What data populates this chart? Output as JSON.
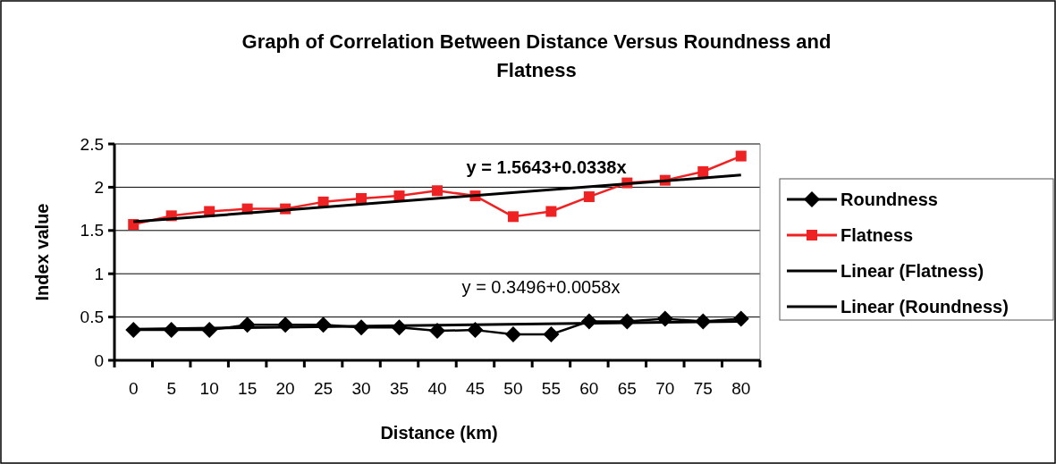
{
  "chart_data": {
    "type": "line",
    "title": "Graph of Correlation Between Distance Versus Roundness and Flatness",
    "xlabel": "Distance (km)",
    "ylabel": "Index value",
    "categories": [
      "0",
      "5",
      "10",
      "15",
      "20",
      "25",
      "30",
      "35",
      "40",
      "45",
      "50",
      "55",
      "60",
      "65",
      "70",
      "75",
      "80"
    ],
    "ylim": [
      0,
      2.5
    ],
    "yticks": [
      0,
      0.5,
      1,
      1.5,
      2,
      2.5
    ],
    "grid": "y",
    "legend": "right",
    "series": [
      {
        "name": "Roundness",
        "color": "#000000",
        "marker": "diamond",
        "values": [
          0.35,
          0.35,
          0.35,
          0.41,
          0.41,
          0.41,
          0.38,
          0.38,
          0.34,
          0.35,
          0.3,
          0.3,
          0.45,
          0.45,
          0.48,
          0.45,
          0.48
        ]
      },
      {
        "name": "Flatness",
        "color": "#ee2222",
        "marker": "square",
        "values": [
          1.57,
          1.67,
          1.72,
          1.75,
          1.75,
          1.83,
          1.87,
          1.9,
          1.96,
          1.9,
          1.66,
          1.72,
          1.89,
          2.05,
          2.08,
          2.18,
          2.36
        ]
      },
      {
        "name": "Linear (Flatness)",
        "color": "#000000",
        "marker": "none",
        "x": [
          "0",
          "80"
        ],
        "values": [
          1.6,
          2.14
        ]
      },
      {
        "name": "Linear (Roundness)",
        "color": "#000000",
        "marker": "none",
        "x": [
          "0",
          "80"
        ],
        "values": [
          0.36,
          0.45
        ]
      }
    ],
    "annotations": [
      "y = 1.5643+0.0338x",
      "y = 0.3496+0.0058x"
    ]
  }
}
